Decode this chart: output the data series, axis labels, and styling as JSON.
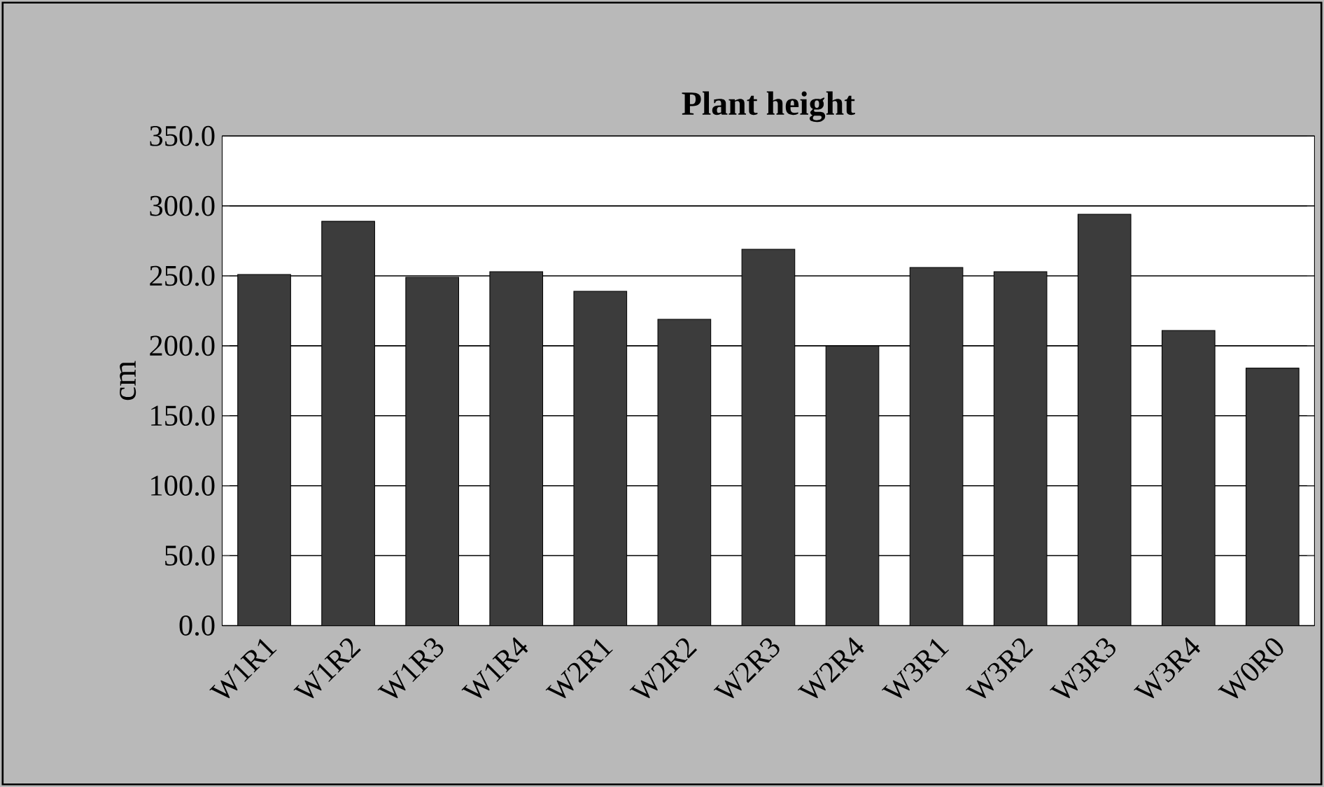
{
  "chart_data": {
    "type": "bar",
    "title": "Plant height",
    "ylabel": "cm",
    "categories": [
      "W1R1",
      "W1R2",
      "W1R3",
      "W1R4",
      "W2R1",
      "W2R2",
      "W2R3",
      "W2R4",
      "W3R1",
      "W3R2",
      "W3R3",
      "W3R4",
      "W0R0"
    ],
    "values": [
      251,
      289,
      249,
      253,
      239,
      219,
      269,
      200,
      256,
      253,
      294,
      211,
      184
    ],
    "color": "#3c3c3c",
    "ylim": [
      0,
      350
    ],
    "yticks": [
      {
        "value": 0,
        "label": "0.0"
      },
      {
        "value": 50,
        "label": "50.0"
      },
      {
        "value": 100,
        "label": "100.0"
      },
      {
        "value": 150,
        "label": "150.0"
      },
      {
        "value": 200,
        "label": "200.0"
      },
      {
        "value": 250,
        "label": "250.0"
      },
      {
        "value": 300,
        "label": "300.0"
      },
      {
        "value": 350,
        "label": "350.0"
      }
    ],
    "grid": "y"
  }
}
